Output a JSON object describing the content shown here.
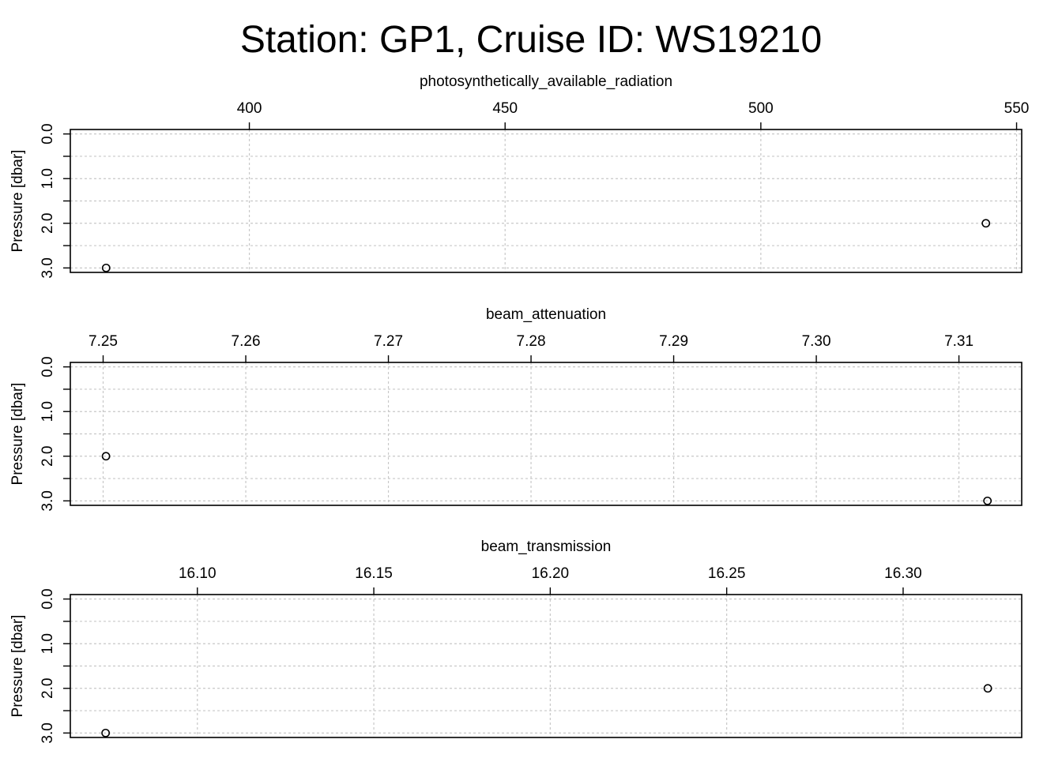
{
  "title": "Station: GP1, Cruise ID: WS19210",
  "chart_data": [
    {
      "type": "scatter",
      "xlabel": "photosynthetically_available_radiation",
      "ylabel": "Pressure [dbar]",
      "xlim": [
        365,
        551
      ],
      "ylim": [
        3.1,
        -0.1
      ],
      "y_reversed": true,
      "grid": true,
      "x_ticks": [
        400,
        450,
        500,
        550
      ],
      "x_tick_labels": [
        "400",
        "450",
        "500",
        "550"
      ],
      "y_ticks": [
        0,
        0.5,
        1,
        1.5,
        2,
        2.5,
        3
      ],
      "y_tick_labels": [
        "0.0",
        "",
        "1.0",
        "",
        "2.0",
        "",
        "3.0"
      ],
      "points": [
        {
          "x": 372,
          "y": 3.0
        },
        {
          "x": 544,
          "y": 2.0
        }
      ]
    },
    {
      "type": "scatter",
      "xlabel": "beam_attenuation",
      "ylabel": "Pressure [dbar]",
      "xlim": [
        7.2477,
        7.3144
      ],
      "ylim": [
        3.1,
        -0.1
      ],
      "y_reversed": true,
      "grid": true,
      "x_ticks": [
        7.25,
        7.26,
        7.27,
        7.28,
        7.29,
        7.3,
        7.31
      ],
      "x_tick_labels": [
        "7.25",
        "7.26",
        "7.27",
        "7.28",
        "7.29",
        "7.30",
        "7.31"
      ],
      "y_ticks": [
        0,
        0.5,
        1,
        1.5,
        2,
        2.5,
        3
      ],
      "y_tick_labels": [
        "0.0",
        "",
        "1.0",
        "",
        "2.0",
        "",
        "3.0"
      ],
      "points": [
        {
          "x": 7.2502,
          "y": 2.0
        },
        {
          "x": 7.312,
          "y": 3.0
        }
      ]
    },
    {
      "type": "scatter",
      "xlabel": "beam_transmission",
      "ylabel": "Pressure [dbar]",
      "xlim": [
        16.064,
        16.3336
      ],
      "ylim": [
        3.1,
        -0.1
      ],
      "y_reversed": true,
      "grid": true,
      "x_ticks": [
        16.1,
        16.15,
        16.2,
        16.25,
        16.3
      ],
      "x_tick_labels": [
        "16.10",
        "16.15",
        "16.20",
        "16.25",
        "16.30"
      ],
      "y_ticks": [
        0,
        0.5,
        1,
        1.5,
        2,
        2.5,
        3
      ],
      "y_tick_labels": [
        "0.0",
        "",
        "1.0",
        "",
        "2.0",
        "",
        "3.0"
      ],
      "points": [
        {
          "x": 16.074,
          "y": 3.0
        },
        {
          "x": 16.324,
          "y": 2.0
        }
      ]
    }
  ]
}
